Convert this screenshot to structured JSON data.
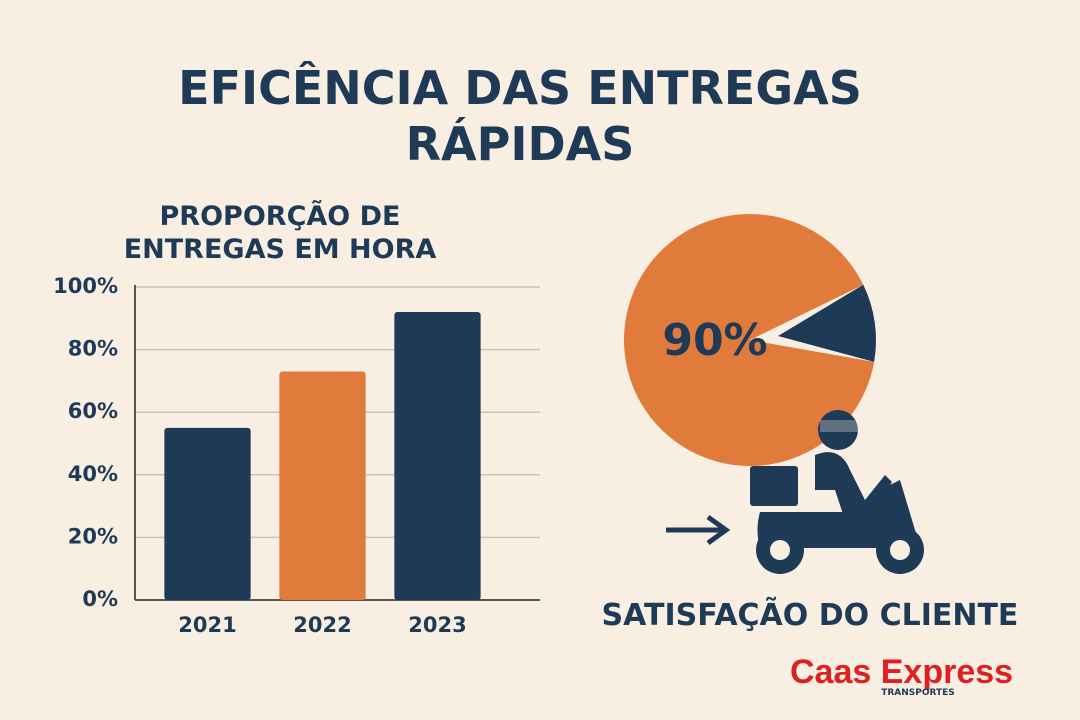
{
  "title": "EFICÊNCIA DAS ENTREGAS RÁPIDAS",
  "logo": {
    "name": "Caas Express",
    "tagline": "TRANSPORTES"
  },
  "chart_data": [
    {
      "type": "bar",
      "title": "PROPORÇÃO DE ENTREGAS EM HORA",
      "categories": [
        "2021",
        "2022",
        "2023"
      ],
      "values": [
        55,
        73,
        92
      ],
      "colors": [
        "#1f3a56",
        "#e07b3c",
        "#1f3a56"
      ],
      "ylim": [
        0,
        100
      ],
      "yticks": [
        {
          "value": 0,
          "label": "0%"
        },
        {
          "value": 20,
          "label": "20%"
        },
        {
          "value": 40,
          "label": "40%"
        },
        {
          "value": 60,
          "label": "60%"
        },
        {
          "value": 80,
          "label": "80%"
        },
        {
          "value": 100,
          "label": "100%"
        }
      ],
      "grid": true
    },
    {
      "type": "pie",
      "title": "SATISFAÇÃO DO CLIENTE",
      "values": [
        90,
        10
      ],
      "value_labels": [
        "90%",
        null
      ],
      "colors": [
        "#e07b3c",
        "#1f3a56"
      ]
    }
  ]
}
